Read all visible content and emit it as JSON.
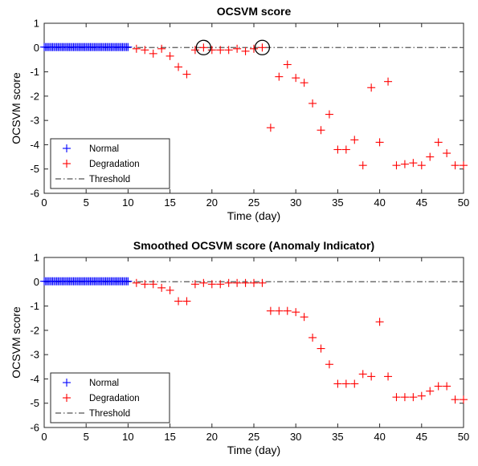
{
  "chart_data": [
    {
      "type": "scatter",
      "title": "OCSVM score",
      "xlabel": "Time (day)",
      "ylabel": "OCSVM score",
      "xlim": [
        0,
        50
      ],
      "ylim": [
        -6,
        1
      ],
      "xticks": [
        "0",
        "5",
        "10",
        "15",
        "20",
        "25",
        "30",
        "35",
        "40",
        "45",
        "50"
      ],
      "yticks": [
        "1",
        "0",
        "-1",
        "-2",
        "-3",
        "-4",
        "-5",
        "-6"
      ],
      "grid": false,
      "legend_position": "bottom-left",
      "threshold": 0,
      "series": [
        {
          "name": "Normal",
          "color": "#0000ff",
          "marker": "plus",
          "x_range": [
            0,
            10
          ],
          "count": 61,
          "y": 0.02
        },
        {
          "name": "Degradation",
          "color": "#ff0000",
          "marker": "plus",
          "x": [
            11,
            12,
            13,
            14,
            15,
            16,
            17,
            18,
            19,
            20,
            21,
            22,
            23,
            24,
            25,
            26,
            27,
            28,
            29,
            30,
            31,
            32,
            33,
            34,
            35,
            36,
            37,
            38,
            39,
            40,
            41,
            42,
            43,
            44,
            45,
            46,
            47,
            48,
            49,
            50
          ],
          "y": [
            -0.05,
            -0.1,
            -0.25,
            -0.05,
            -0.35,
            -0.8,
            -1.1,
            -0.1,
            0.0,
            -0.1,
            -0.1,
            -0.1,
            -0.05,
            -0.15,
            -0.05,
            0.0,
            -3.3,
            -1.2,
            -0.7,
            -1.25,
            -1.45,
            -2.3,
            -3.4,
            -2.75,
            -4.2,
            -4.2,
            -3.8,
            -4.85,
            -1.65,
            -3.9,
            -1.4,
            -4.85,
            -4.8,
            -4.75,
            -4.85,
            -4.5,
            -3.9,
            -4.35,
            -4.85,
            -4.85
          ]
        },
        {
          "name": "Threshold",
          "color": "#555555",
          "style": "dash-dot"
        }
      ],
      "highlight_circles": [
        {
          "x": 19,
          "y": 0.0
        },
        {
          "x": 26,
          "y": 0.0
        }
      ]
    },
    {
      "type": "scatter",
      "title": "Smoothed OCSVM score (Anomaly Indicator)",
      "xlabel": "Time (day)",
      "ylabel": "OCSVM score",
      "xlim": [
        0,
        50
      ],
      "ylim": [
        -6,
        1
      ],
      "xticks": [
        "0",
        "5",
        "10",
        "15",
        "20",
        "25",
        "30",
        "35",
        "40",
        "45",
        "50"
      ],
      "yticks": [
        "1",
        "0",
        "-1",
        "-2",
        "-3",
        "-4",
        "-5",
        "-6"
      ],
      "grid": false,
      "legend_position": "bottom-left",
      "threshold": 0,
      "series": [
        {
          "name": "Normal",
          "color": "#0000ff",
          "marker": "plus",
          "x_range": [
            0,
            10
          ],
          "count": 61,
          "y": 0.02
        },
        {
          "name": "Degradation",
          "color": "#ff0000",
          "marker": "plus",
          "x": [
            11,
            12,
            13,
            14,
            15,
            16,
            17,
            18,
            19,
            20,
            21,
            22,
            23,
            24,
            25,
            26,
            27,
            28,
            29,
            30,
            31,
            32,
            33,
            34,
            35,
            36,
            37,
            38,
            39,
            40,
            41,
            42,
            43,
            44,
            45,
            46,
            47,
            48,
            49,
            50
          ],
          "y": [
            -0.05,
            -0.1,
            -0.1,
            -0.25,
            -0.35,
            -0.8,
            -0.8,
            -0.1,
            -0.05,
            -0.1,
            -0.1,
            -0.05,
            -0.05,
            -0.05,
            -0.05,
            -0.05,
            -1.2,
            -1.2,
            -1.2,
            -1.25,
            -1.45,
            -2.3,
            -2.75,
            -3.4,
            -4.2,
            -4.2,
            -4.2,
            -3.8,
            -3.9,
            -1.65,
            -3.9,
            -4.75,
            -4.75,
            -4.75,
            -4.7,
            -4.5,
            -4.3,
            -4.3,
            -4.85,
            -4.85
          ]
        },
        {
          "name": "Threshold",
          "color": "#555555",
          "style": "dash-dot"
        }
      ]
    }
  ]
}
